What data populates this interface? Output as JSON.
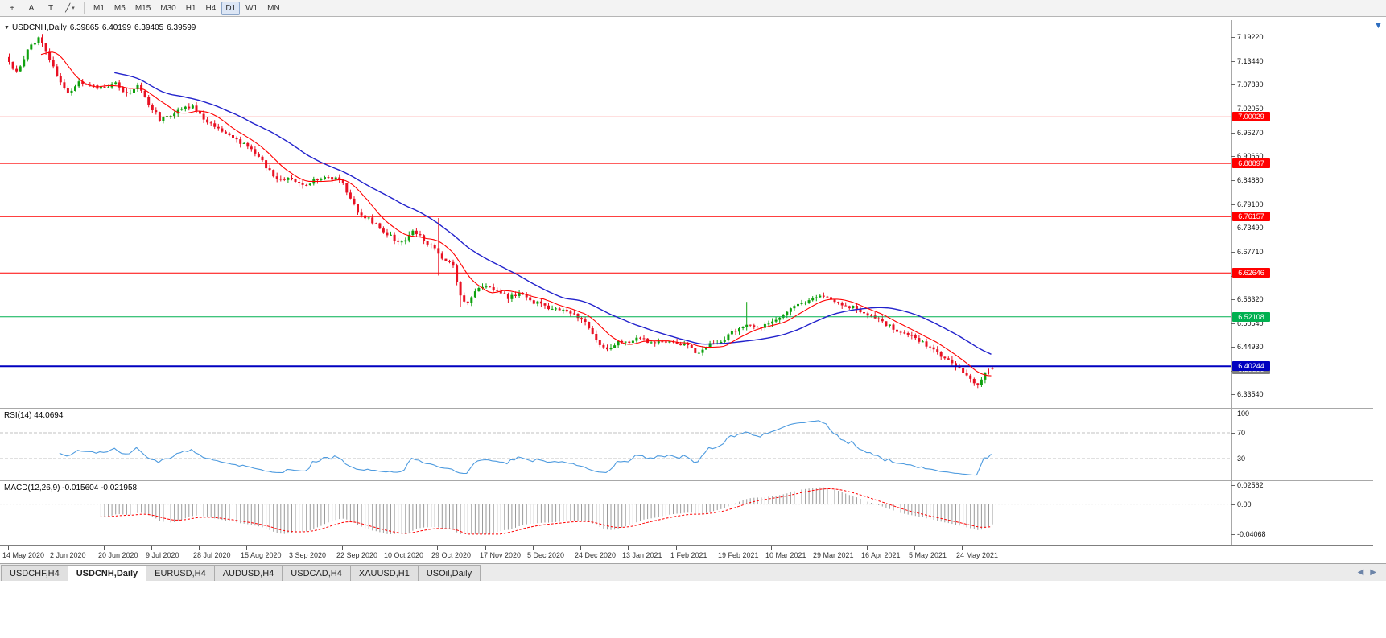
{
  "toolbar": {
    "tool_buttons": [
      {
        "name": "cursor-tool-button",
        "glyph": "+"
      },
      {
        "name": "text-annotation-button",
        "glyph": "A"
      },
      {
        "name": "text-label-button",
        "glyph": "T"
      },
      {
        "name": "line-studies-dropdown",
        "glyph": "╱",
        "caret": "▾"
      }
    ],
    "timeframes": [
      "M1",
      "M5",
      "M15",
      "M30",
      "H1",
      "H4",
      "D1",
      "W1",
      "MN"
    ],
    "active_timeframe": "D1"
  },
  "chart_header": {
    "collapse_glyph": "▼",
    "symbol": "USDCNH,Daily",
    "open": "6.39865",
    "high": "6.40199",
    "low": "6.39405",
    "close": "6.39599"
  },
  "price_scale": {
    "ticks": [
      "7.19220",
      "7.13440",
      "7.07830",
      "7.02050",
      "6.96270",
      "6.90660",
      "6.84880",
      "6.79100",
      "6.73490",
      "6.67710",
      "6.61930",
      "6.56320",
      "6.50540",
      "6.44930",
      "6.39150",
      "6.33540"
    ]
  },
  "levels": [
    {
      "value": 7.00029,
      "label": "7.00029",
      "color": "#FF0000",
      "width": 1
    },
    {
      "value": 6.88897,
      "label": "6.88897",
      "color": "#FF0000",
      "width": 1
    },
    {
      "value": 6.76157,
      "label": "6.76157",
      "color": "#FF0000",
      "width": 1
    },
    {
      "value": 6.62646,
      "label": "6.62646",
      "color": "#FF0000",
      "width": 1
    },
    {
      "value": 6.52108,
      "label": "6.52108",
      "color": "#00B050",
      "width": 1
    },
    {
      "value": 6.40244,
      "label": "6.40244",
      "color": "#0000C0",
      "width": 2
    }
  ],
  "bid_tag": {
    "value": 6.39599,
    "label": "6.39599",
    "color": "#7F7F7F"
  },
  "rsi": {
    "label": "RSI(14) 44.0694",
    "line_color": "#4E9BDF",
    "scale_labels": [
      "100",
      "70",
      "30"
    ],
    "scale_values": [
      100,
      70,
      30
    ],
    "level_lines": [
      70,
      30
    ]
  },
  "macd": {
    "label": "MACD(12,26,9) -0.015604 -0.021958",
    "scale_labels": [
      "0.02562",
      "0.00",
      "-0.04068"
    ],
    "scale_values": [
      0.02562,
      0,
      -0.04068
    ],
    "histogram_color": "#9A9A9A",
    "signal_color": "#FF0000"
  },
  "dates": [
    "14 May 2020",
    "2 Jun 2020",
    "20 Jun 2020",
    "9 Jul 2020",
    "28 Jul 2020",
    "15 Aug 2020",
    "3 Sep 2020",
    "22 Sep 2020",
    "10 Oct 2020",
    "29 Oct 2020",
    "17 Nov 2020",
    "5 Dec 2020",
    "24 Dec 2020",
    "13 Jan 2021",
    "1 Feb 2021",
    "19 Feb 2021",
    "10 Mar 2021",
    "29 Mar 2021",
    "16 Apr 2021",
    "5 May 2021",
    "24 May 2021"
  ],
  "tabs": [
    {
      "label": "USDCHF,H4",
      "active": false
    },
    {
      "label": "USDCNH,Daily",
      "active": true
    },
    {
      "label": "EURUSD,H4",
      "active": false
    },
    {
      "label": "AUDUSD,H4",
      "active": false
    },
    {
      "label": "USDCAD,H4",
      "active": false
    },
    {
      "label": "XAUUSD,H1",
      "active": false
    },
    {
      "label": "USOil,Daily",
      "active": false
    }
  ],
  "ui": {
    "scroll_down_glyph": "▼",
    "tab_scroll_left": "◀",
    "tab_scroll_right": "▶"
  },
  "chart_data": {
    "type": "candlestick",
    "symbol": "USDCNH",
    "timeframe": "Daily",
    "title": "USDCNH,Daily 6.39865 6.40199 6.39405 6.39599",
    "last_ohlc": {
      "open": 6.39865,
      "high": 6.40199,
      "low": 6.39405,
      "close": 6.39599
    },
    "price_range": [
      6.3354,
      7.1922
    ],
    "num_candles": 269,
    "colors": {
      "up": "#0EA10E",
      "down": "#E81123",
      "ma_fast": "#FF0000",
      "ma_slow": "#2222CC"
    },
    "close_anchors": [
      [
        0,
        7.13
      ],
      [
        2,
        7.106
      ],
      [
        5,
        7.162
      ],
      [
        8,
        7.188
      ],
      [
        10,
        7.16
      ],
      [
        13,
        7.096
      ],
      [
        16,
        7.06
      ],
      [
        19,
        7.082
      ],
      [
        22,
        7.076
      ],
      [
        26,
        7.068
      ],
      [
        29,
        7.079
      ],
      [
        32,
        7.058
      ],
      [
        35,
        7.073
      ],
      [
        38,
        7.032
      ],
      [
        41,
        6.996
      ],
      [
        44,
        7.006
      ],
      [
        47,
        7.022
      ],
      [
        50,
        7.028
      ],
      [
        53,
        6.998
      ],
      [
        56,
        6.98
      ],
      [
        59,
        6.964
      ],
      [
        62,
        6.945
      ],
      [
        65,
        6.928
      ],
      [
        68,
        6.906
      ],
      [
        71,
        6.87
      ],
      [
        74,
        6.848
      ],
      [
        77,
        6.853
      ],
      [
        80,
        6.836
      ],
      [
        83,
        6.849
      ],
      [
        86,
        6.858
      ],
      [
        89,
        6.852
      ],
      [
        91,
        6.841
      ],
      [
        93,
        6.801
      ],
      [
        95,
        6.773
      ],
      [
        98,
        6.756
      ],
      [
        101,
        6.736
      ],
      [
        104,
        6.713
      ],
      [
        107,
        6.698
      ],
      [
        110,
        6.728
      ],
      [
        113,
        6.706
      ],
      [
        116,
        6.681
      ],
      [
        117,
        6.668
      ],
      [
        119,
        6.655
      ],
      [
        121,
        6.645
      ],
      [
        123,
        6.568
      ],
      [
        125,
        6.556
      ],
      [
        127,
        6.586
      ],
      [
        130,
        6.598
      ],
      [
        133,
        6.586
      ],
      [
        136,
        6.568
      ],
      [
        139,
        6.579
      ],
      [
        143,
        6.556
      ],
      [
        146,
        6.548
      ],
      [
        149,
        6.538
      ],
      [
        152,
        6.531
      ],
      [
        156,
        6.518
      ],
      [
        158,
        6.498
      ],
      [
        160,
        6.463
      ],
      [
        163,
        6.446
      ],
      [
        166,
        6.459
      ],
      [
        169,
        6.463
      ],
      [
        172,
        6.473
      ],
      [
        175,
        6.459
      ],
      [
        178,
        6.463
      ],
      [
        182,
        6.459
      ],
      [
        185,
        6.449
      ],
      [
        188,
        6.433
      ],
      [
        191,
        6.453
      ],
      [
        195,
        6.469
      ],
      [
        198,
        6.489
      ],
      [
        201,
        6.499
      ],
      [
        204,
        6.493
      ],
      [
        208,
        6.513
      ],
      [
        211,
        6.529
      ],
      [
        214,
        6.546
      ],
      [
        217,
        6.553
      ],
      [
        221,
        6.569
      ],
      [
        224,
        6.563
      ],
      [
        227,
        6.553
      ],
      [
        230,
        6.543
      ],
      [
        234,
        6.526
      ],
      [
        238,
        6.509
      ],
      [
        241,
        6.493
      ],
      [
        244,
        6.481
      ],
      [
        247,
        6.469
      ],
      [
        250,
        6.453
      ],
      [
        253,
        6.433
      ],
      [
        256,
        6.419
      ],
      [
        258,
        6.403
      ],
      [
        260,
        6.389
      ],
      [
        262,
        6.369
      ],
      [
        264,
        6.362
      ],
      [
        266,
        6.386
      ],
      [
        268,
        6.396
      ]
    ],
    "spikes": [
      [
        8,
        "high",
        7.192
      ],
      [
        117,
        "high",
        6.758
      ],
      [
        117,
        "low",
        6.62
      ],
      [
        123,
        "low",
        6.545
      ],
      [
        201,
        "high",
        6.557
      ]
    ],
    "moving_averages": [
      {
        "color": "#FF0000",
        "period": 10
      },
      {
        "color": "#2222CC",
        "period": 30
      }
    ],
    "horizontal_lines": [
      7.00029,
      6.88897,
      6.76157,
      6.62646,
      6.52108,
      6.40244
    ],
    "indicators": [
      {
        "name": "RSI",
        "period": 14,
        "current": 44.0694,
        "levels": [
          30,
          70
        ]
      },
      {
        "name": "MACD",
        "params": [
          12,
          26,
          9
        ],
        "current_macd": -0.015604,
        "current_signal": -0.021958,
        "scale": [
          -0.04068,
          0.02562
        ]
      }
    ],
    "x_axis_dates": [
      "14 May 2020",
      "2 Jun 2020",
      "20 Jun 2020",
      "9 Jul 2020",
      "28 Jul 2020",
      "15 Aug 2020",
      "3 Sep 2020",
      "22 Sep 2020",
      "10 Oct 2020",
      "29 Oct 2020",
      "17 Nov 2020",
      "5 Dec 2020",
      "24 Dec 2020",
      "13 Jan 2021",
      "1 Feb 2021",
      "19 Feb 2021",
      "10 Mar 2021",
      "29 Mar 2021",
      "16 Apr 2021",
      "5 May 2021",
      "24 May 2021"
    ]
  }
}
